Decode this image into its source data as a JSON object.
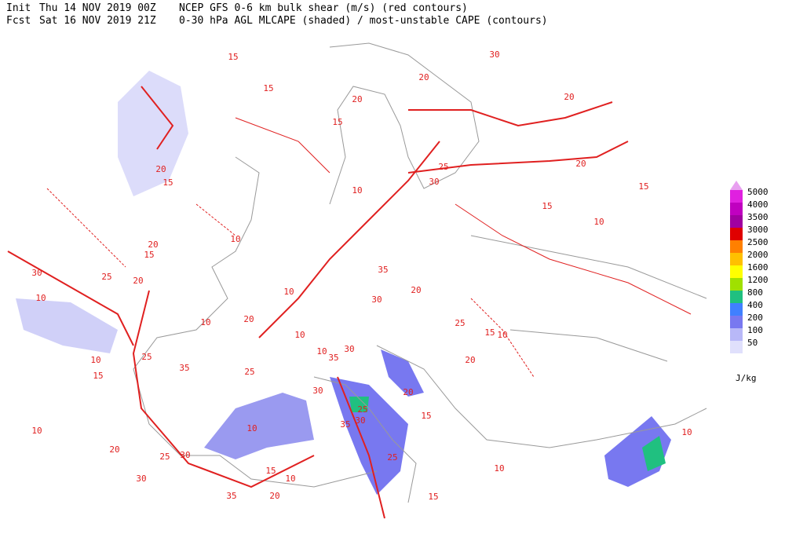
{
  "header": {
    "line1": [
      "Init",
      "Thu 14 NOV 2019 00Z",
      "NCEP GFS 0-6 km bulk shear (m/s) (red contours)"
    ],
    "line2": [
      "Fcst",
      "Sat 16 NOV 2019 21Z",
      "0-30 hPa AGL MLCAPE (shaded) / most-unstable CAPE (contours)"
    ]
  },
  "legend": {
    "levels": [
      5000,
      4000,
      3500,
      3000,
      2500,
      2000,
      1600,
      1200,
      800,
      400,
      200,
      100,
      50
    ],
    "colors": [
      "#e020e0",
      "#c000c0",
      "#a000a0",
      "#e00000",
      "#ff8000",
      "#ffc000",
      "#ffff00",
      "#a0e000",
      "#20c080",
      "#4080ff",
      "#7878f0",
      "#b8b8f8",
      "#e0e0fc"
    ],
    "unit": "J/kg"
  },
  "contour_labels": [
    15,
    30,
    20,
    15,
    20,
    20,
    15,
    25,
    30,
    20,
    20,
    15,
    10,
    15,
    10,
    15,
    20,
    15,
    10,
    30,
    25,
    20,
    10,
    35,
    10,
    20,
    30,
    10,
    20,
    25,
    15,
    10,
    10,
    30,
    35,
    25,
    35,
    10,
    15,
    25,
    30,
    25,
    35,
    30,
    15,
    10,
    10,
    20,
    25,
    30,
    15,
    10,
    30,
    35,
    20,
    25,
    15,
    10,
    20,
    10,
    10,
    20
  ]
}
